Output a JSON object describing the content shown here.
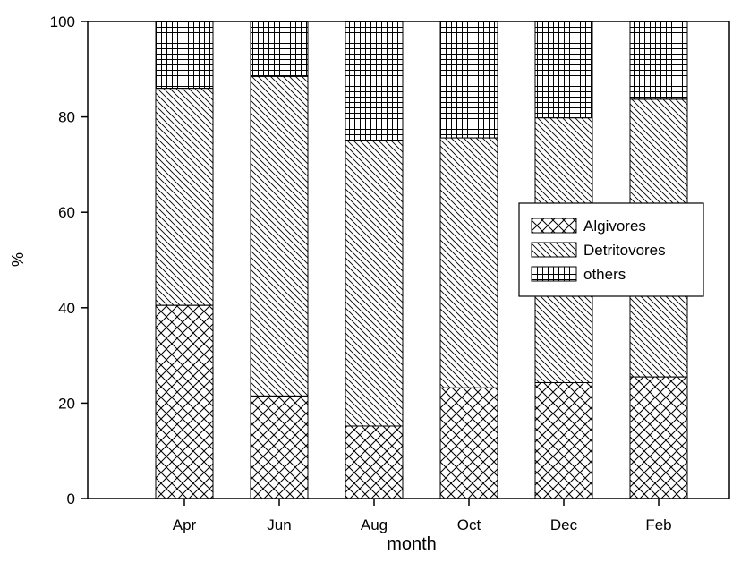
{
  "chart_data": {
    "type": "bar",
    "stacked": true,
    "categories": [
      "Apr",
      "Jun",
      "Aug",
      "Oct",
      "Dec",
      "Feb"
    ],
    "series": [
      {
        "name": "Algivores",
        "pattern": "crosshatch-diagonal",
        "values": [
          40.5,
          21.5,
          15.2,
          23.2,
          24.3,
          25.5
        ]
      },
      {
        "name": "Detritovores",
        "pattern": "diagonal-lines",
        "values": [
          45.5,
          67.0,
          59.9,
          52.4,
          55.5,
          58.2
        ]
      },
      {
        "name": "others",
        "pattern": "square-grid",
        "values": [
          14.0,
          11.5,
          24.9,
          24.4,
          20.2,
          16.3
        ]
      }
    ],
    "title": "",
    "xlabel": "month",
    "ylabel": "%",
    "ylim": [
      0,
      100
    ],
    "yticks": [
      0,
      20,
      40,
      60,
      80,
      100
    ],
    "grid": false,
    "legend_position": "center-right",
    "colors": {
      "fill": "#ffffff",
      "stroke": "#000000"
    }
  }
}
